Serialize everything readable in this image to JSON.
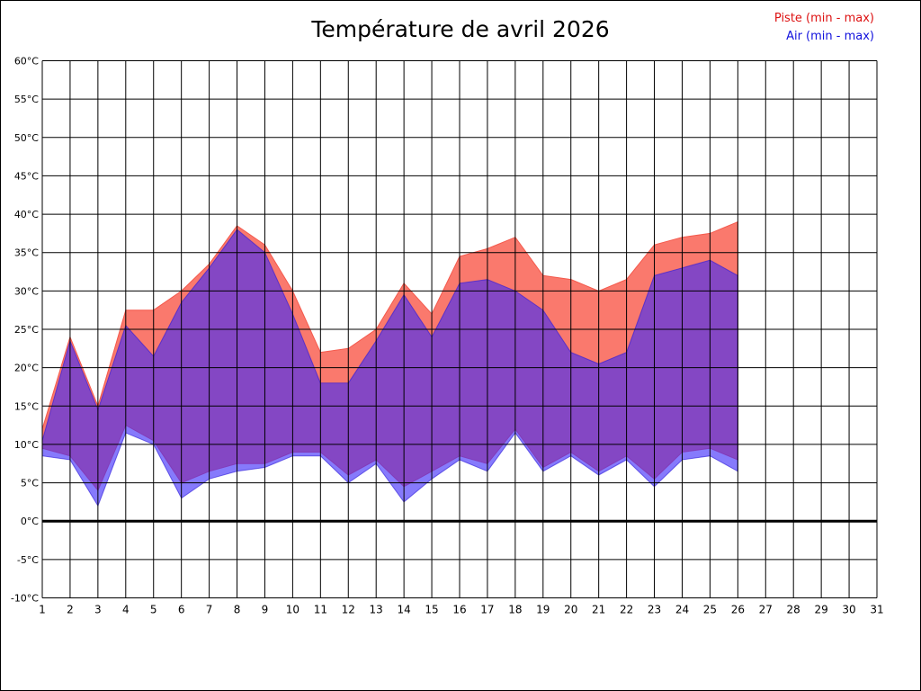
{
  "title": "Température de avril 2026",
  "legend": {
    "piste": {
      "label": "Piste (min - max)",
      "color": "#dd1111"
    },
    "air": {
      "label": "Air (min - max)",
      "color": "#1111dd"
    }
  },
  "axis": {
    "y_unit": "°C",
    "zero_line_color": "#000000",
    "grid_color": "#000000",
    "tick_label_color": "#000000"
  },
  "chart_data": {
    "type": "area",
    "title": "Température de avril 2026",
    "xlabel": "",
    "ylabel": "",
    "ylim": [
      -10,
      60
    ],
    "ytick_step": 5,
    "xticks": [
      1,
      2,
      3,
      4,
      5,
      6,
      7,
      8,
      9,
      10,
      11,
      12,
      13,
      14,
      15,
      16,
      17,
      18,
      19,
      20,
      21,
      22,
      23,
      24,
      25,
      26,
      27,
      28,
      29,
      30,
      31
    ],
    "grid": true,
    "zero_line": true,
    "legend_position": "top-right",
    "x": [
      1,
      2,
      3,
      4,
      5,
      6,
      7,
      8,
      9,
      10,
      11,
      12,
      13,
      14,
      15,
      16,
      17,
      18,
      19,
      20,
      21,
      22,
      23,
      24,
      25,
      26
    ],
    "series": [
      {
        "name": "Piste (min - max)",
        "role": "band",
        "color": "#fa796d",
        "stroke": "#f4594c",
        "opacity": 1,
        "max": [
          12,
          24,
          15,
          27.5,
          27.5,
          30,
          33.5,
          38.5,
          36,
          30,
          22,
          22.5,
          25,
          31,
          27,
          34.5,
          35.5,
          37,
          32,
          31.5,
          30,
          31.5,
          36,
          37,
          37.5,
          39
        ],
        "min": [
          9.5,
          8.5,
          4,
          12.5,
          10.5,
          5,
          6.5,
          7.5,
          7.5,
          9,
          9,
          6,
          8,
          4.5,
          6.5,
          8.5,
          7.5,
          12,
          7,
          9,
          6.5,
          8.5,
          5.5,
          9,
          9.5,
          8
        ]
      },
      {
        "name": "Air (min - max)",
        "role": "band",
        "color": "#3c28fa",
        "stroke": "#2a18d8",
        "opacity": 0.62,
        "max": [
          10.5,
          23.5,
          14.5,
          25.5,
          21.5,
          28.5,
          33,
          38,
          35,
          27,
          18,
          18,
          23.5,
          29.5,
          24,
          31,
          31.5,
          30,
          27.5,
          22,
          20.5,
          22,
          32,
          33,
          34,
          32
        ],
        "min": [
          8.5,
          8,
          2,
          11.5,
          10,
          3,
          5.5,
          6.5,
          7,
          8.5,
          8.5,
          5,
          7.5,
          2.5,
          5.5,
          8,
          6.5,
          11.5,
          6.5,
          8.5,
          6,
          8,
          4.5,
          8,
          8.5,
          6.5
        ]
      }
    ]
  }
}
